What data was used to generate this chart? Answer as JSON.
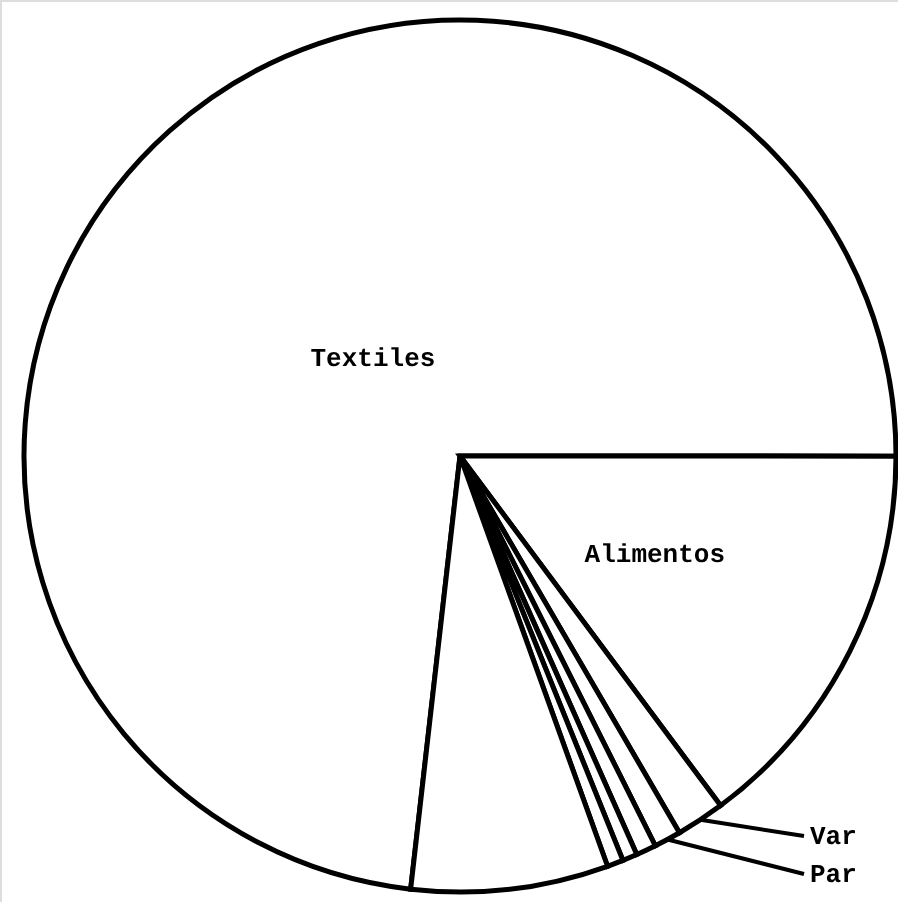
{
  "chart_data": {
    "type": "pie",
    "categories": [
      "Textiles",
      "Alimentos",
      "Var",
      "Par",
      null,
      null,
      null,
      null
    ],
    "values": [
      73.2,
      14.8,
      1.8,
      1.0,
      0.75,
      0.55,
      0.6,
      7.3
    ],
    "colors": [
      "#ffffff",
      "#ffffff",
      "#ffffff",
      "#ffffff",
      "#ffffff",
      "#ffffff",
      "#ffffff",
      "#ffffff"
    ]
  }
}
